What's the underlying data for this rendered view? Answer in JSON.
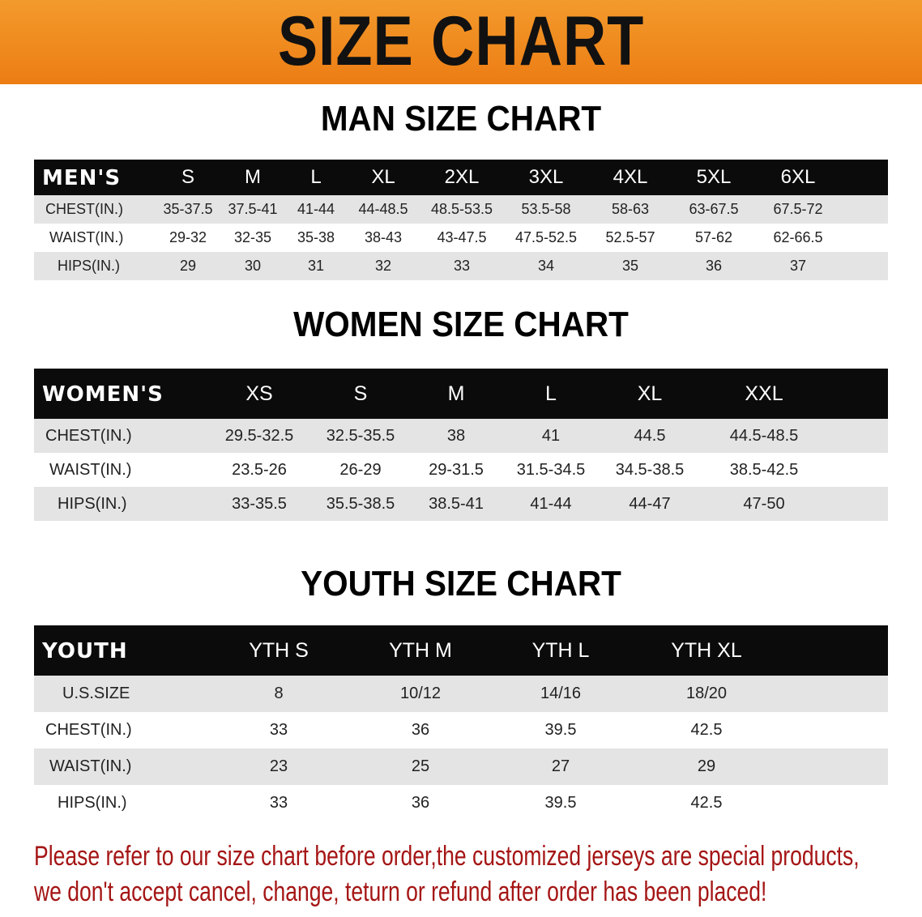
{
  "banner": {
    "title": "SIZE CHART",
    "color": "#ee8418"
  },
  "men": {
    "title": "MAN SIZE CHART",
    "header": [
      "MEN'S",
      "S",
      "M",
      "L",
      "XL",
      "2XL",
      "3XL",
      "4XL",
      "5XL",
      "6XL"
    ],
    "rows": [
      [
        "CHEST(IN.)",
        "35-37.5",
        "37.5-41",
        "41-44",
        "44-48.5",
        "48.5-53.5",
        "53.5-58",
        "58-63",
        "63-67.5",
        "67.5-72"
      ],
      [
        "WAIST(IN.)",
        "29-32",
        "32-35",
        "35-38",
        "38-43",
        "43-47.5",
        "47.5-52.5",
        "52.5-57",
        "57-62",
        "62-66.5"
      ],
      [
        "HIPS(IN.)",
        "29",
        "30",
        "31",
        "32",
        "33",
        "34",
        "35",
        "36",
        "37"
      ]
    ]
  },
  "women": {
    "title": "WOMEN SIZE CHART",
    "header": [
      "WOMEN'S",
      "XS",
      "S",
      "M",
      "L",
      "XL",
      "XXL"
    ],
    "rows": [
      [
        "CHEST(IN.)",
        "29.5-32.5",
        "32.5-35.5",
        "38",
        "41",
        "44.5",
        "44.5-48.5"
      ],
      [
        "WAIST(IN.)",
        "23.5-26",
        "26-29",
        "29-31.5",
        "31.5-34.5",
        "34.5-38.5",
        "38.5-42.5"
      ],
      [
        "HIPS(IN.)",
        "33-35.5",
        "35.5-38.5",
        "38.5-41",
        "41-44",
        "44-47",
        "47-50"
      ]
    ]
  },
  "youth": {
    "title": "YOUTH SIZE CHART",
    "header": [
      "YOUTH",
      "YTH S",
      "YTH M",
      "YTH L",
      "YTH XL"
    ],
    "rows": [
      [
        "U.S.SIZE",
        "8",
        "10/12",
        "14/16",
        "18/20"
      ],
      [
        "CHEST(IN.)",
        "33",
        "36",
        "39.5",
        "42.5"
      ],
      [
        "WAIST(IN.)",
        "23",
        "25",
        "27",
        "29"
      ],
      [
        "HIPS(IN.)",
        "33",
        "36",
        "39.5",
        "42.5"
      ]
    ]
  },
  "notice": {
    "line1": "Please refer to our size chart before order,the customized jerseys are special products,",
    "line2": "we don't accept cancel, change, teturn or refund after order has been placed!",
    "color": "#a51515"
  }
}
